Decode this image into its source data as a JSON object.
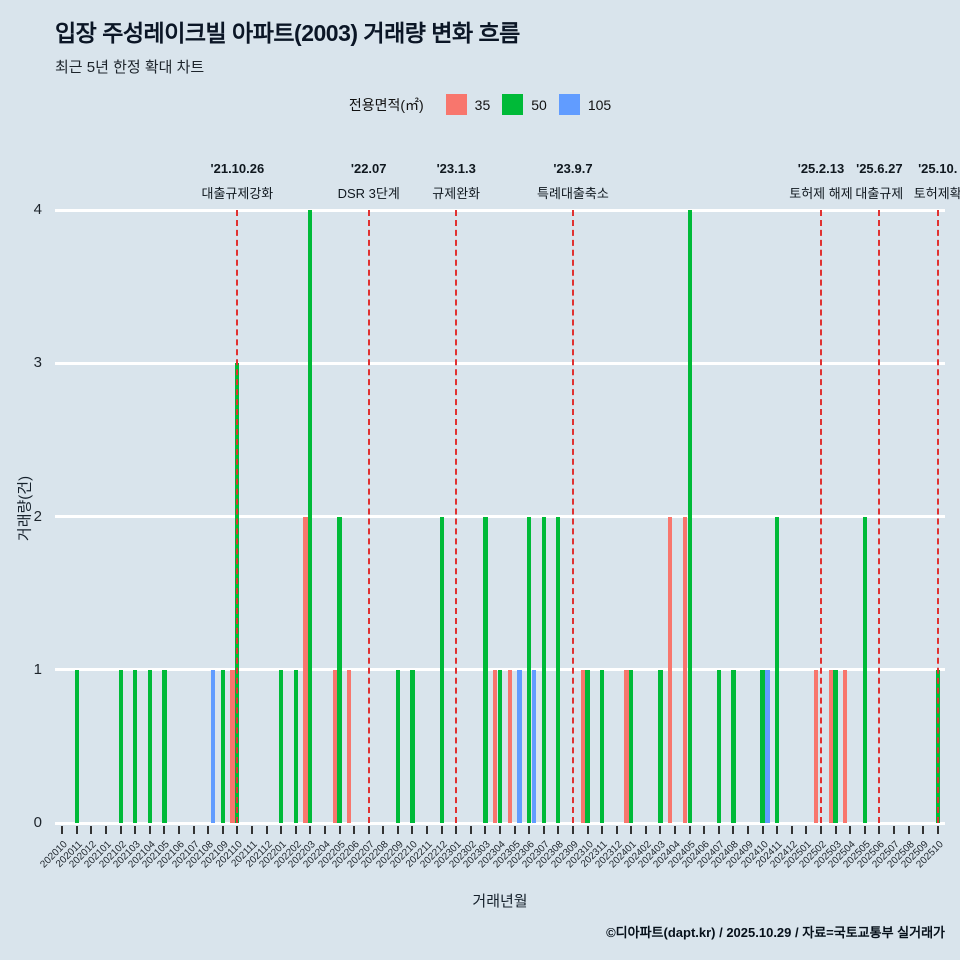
{
  "chart_data": {
    "type": "bar",
    "title": "입장 주성레이크빌 아파트(2003) 거래량 변화 흐름",
    "subtitle": "최근 5년 한정 확대 차트",
    "legend_title": "전용면적(㎡)",
    "xlabel": "거래년월",
    "ylabel": "거래량(건)",
    "ylim": [
      0,
      4
    ],
    "yticks": [
      0,
      1,
      2,
      3,
      4
    ],
    "grid": "horizontal-white-major",
    "legend_position": "top-center",
    "annotation_line_color": "#e03131",
    "categories": [
      "202010",
      "202011",
      "202012",
      "202101",
      "202102",
      "202103",
      "202104",
      "202105",
      "202106",
      "202107",
      "202108",
      "202109",
      "202110",
      "202111",
      "202112",
      "202201",
      "202202",
      "202203",
      "202204",
      "202205",
      "202206",
      "202207",
      "202208",
      "202209",
      "202210",
      "202211",
      "202212",
      "202301",
      "202302",
      "202303",
      "202304",
      "202305",
      "202306",
      "202307",
      "202308",
      "202309",
      "202310",
      "202311",
      "202312",
      "202401",
      "202402",
      "202403",
      "202404",
      "202405",
      "202406",
      "202407",
      "202408",
      "202409",
      "202410",
      "202411",
      "202412",
      "202501",
      "202502",
      "202503",
      "202504",
      "202505",
      "202506",
      "202507",
      "202508",
      "202509",
      "202510"
    ],
    "series": [
      {
        "name": "35",
        "color": "#f8766d",
        "values": [
          0,
          0,
          0,
          0,
          0,
          0,
          0,
          0,
          0,
          0,
          0,
          0,
          1,
          0,
          0,
          0,
          0,
          2,
          0,
          1,
          1,
          0,
          0,
          0,
          0,
          0,
          0,
          0,
          0,
          0,
          1,
          1,
          0,
          0,
          0,
          0,
          1,
          0,
          0,
          1,
          0,
          0,
          2,
          2,
          0,
          0,
          0,
          0,
          0,
          0,
          0,
          0,
          1,
          1,
          1,
          0,
          0,
          0,
          0,
          0,
          0
        ]
      },
      {
        "name": "50",
        "color": "#00ba38",
        "values": [
          0,
          1,
          0,
          0,
          1,
          1,
          1,
          1,
          0,
          0,
          0,
          1,
          3,
          0,
          0,
          1,
          1,
          4,
          0,
          2,
          0,
          0,
          0,
          1,
          1,
          0,
          2,
          0,
          0,
          2,
          1,
          0,
          2,
          2,
          2,
          0,
          1,
          1,
          0,
          1,
          0,
          1,
          0,
          4,
          0,
          1,
          1,
          0,
          1,
          2,
          0,
          0,
          0,
          1,
          0,
          2,
          0,
          0,
          0,
          0,
          1
        ]
      },
      {
        "name": "105",
        "color": "#619cff",
        "values": [
          0,
          0,
          0,
          0,
          0,
          0,
          0,
          0,
          0,
          0,
          1,
          0,
          0,
          0,
          0,
          0,
          0,
          0,
          0,
          0,
          0,
          0,
          0,
          0,
          0,
          0,
          0,
          0,
          0,
          0,
          0,
          1,
          1,
          0,
          0,
          0,
          0,
          0,
          0,
          0,
          0,
          0,
          0,
          0,
          0,
          0,
          0,
          0,
          1,
          0,
          0,
          0,
          0,
          0,
          0,
          0,
          0,
          0,
          0,
          0,
          0
        ]
      }
    ],
    "annotations": [
      {
        "month": "202110",
        "date": "'21.10.26",
        "label": "대출규제강화"
      },
      {
        "month": "202207",
        "date": "'22.07",
        "label": "DSR 3단계"
      },
      {
        "month": "202301",
        "date": "'23.1.3",
        "label": "규제완화"
      },
      {
        "month": "202309",
        "date": "'23.9.7",
        "label": "특례대출축소"
      },
      {
        "month": "202502",
        "date": "'25.2.13",
        "label": "토허제 해제"
      },
      {
        "month": "202506",
        "date": "'25.6.27",
        "label": "대출규제"
      },
      {
        "month": "202510",
        "date": "'25.10.",
        "label": "토허제확"
      }
    ]
  },
  "footer": {
    "credit": "©디아파트(dapt.kr) / 2025.10.29 / 자료=국토교통부 실거래가"
  }
}
